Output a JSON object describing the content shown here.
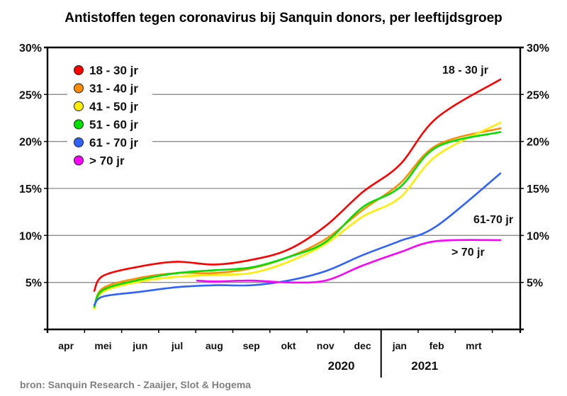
{
  "chart_data": {
    "type": "line",
    "title": "Antistoffen tegen coronavirus bij Sanquin donors, per leeftijdsgroep",
    "xlabel": "",
    "ylabel": "",
    "categories": [
      "apr",
      "mei",
      "jun",
      "jul",
      "aug",
      "sep",
      "okt",
      "nov",
      "dec",
      "jan",
      "feb",
      "mrt"
    ],
    "year_labels": [
      {
        "label": "2020",
        "under": "dec"
      },
      {
        "label": "2021",
        "under": "feb"
      }
    ],
    "year_divider_after": "dec",
    "ylim": [
      0,
      30
    ],
    "yticks": [
      5,
      10,
      15,
      20,
      25,
      30
    ],
    "ytick_labels": [
      "5%",
      "10%",
      "15%",
      "20%",
      "25%",
      "30%"
    ],
    "grid": true,
    "legend_position": "top-left",
    "series": [
      {
        "name": "18 - 30 jr",
        "color": "#ff0000",
        "values": [
          4.1,
          5.7,
          6.7,
          7.2,
          6.9,
          7.4,
          8.5,
          11.0,
          14.6,
          17.5,
          22.5,
          26.6
        ]
      },
      {
        "name": "31 - 40 jr",
        "color": "#ff8c00",
        "values": [
          2.4,
          4.4,
          5.5,
          6.0,
          6.0,
          6.5,
          7.7,
          9.6,
          12.7,
          15.5,
          19.6,
          21.4
        ]
      },
      {
        "name": "41 - 50 jr",
        "color": "#ffee00",
        "values": [
          2.2,
          4.0,
          5.1,
          5.6,
          5.8,
          6.0,
          7.2,
          9.1,
          12.0,
          14.0,
          18.5,
          22.0
        ]
      },
      {
        "name": "51 - 60 jr",
        "color": "#00e000",
        "values": [
          2.4,
          4.2,
          5.3,
          6.0,
          6.3,
          6.6,
          7.7,
          9.3,
          13.0,
          15.1,
          19.4,
          21.0
        ]
      },
      {
        "name": "61 - 70 jr",
        "color": "#2f62ff",
        "values": [
          2.6,
          3.5,
          4.0,
          4.5,
          4.7,
          4.7,
          5.2,
          6.2,
          7.9,
          9.4,
          11.0,
          16.6
        ]
      },
      {
        "name": "> 70 jr",
        "color": "#ff00ff",
        "values": [
          null,
          null,
          null,
          5.2,
          5.1,
          5.2,
          5.0,
          5.2,
          6.8,
          8.2,
          9.4,
          9.5
        ]
      }
    ],
    "annotations": [
      {
        "text": "18 - 30 jr",
        "series": "18 - 30 jr"
      },
      {
        "text": "61-70 jr",
        "series": "61 - 70 jr"
      },
      {
        "text": "> 70 jr",
        "series": "> 70 jr"
      }
    ],
    "source": "bron: Sanquin Research - Zaaijer, Slot & Hogema"
  }
}
